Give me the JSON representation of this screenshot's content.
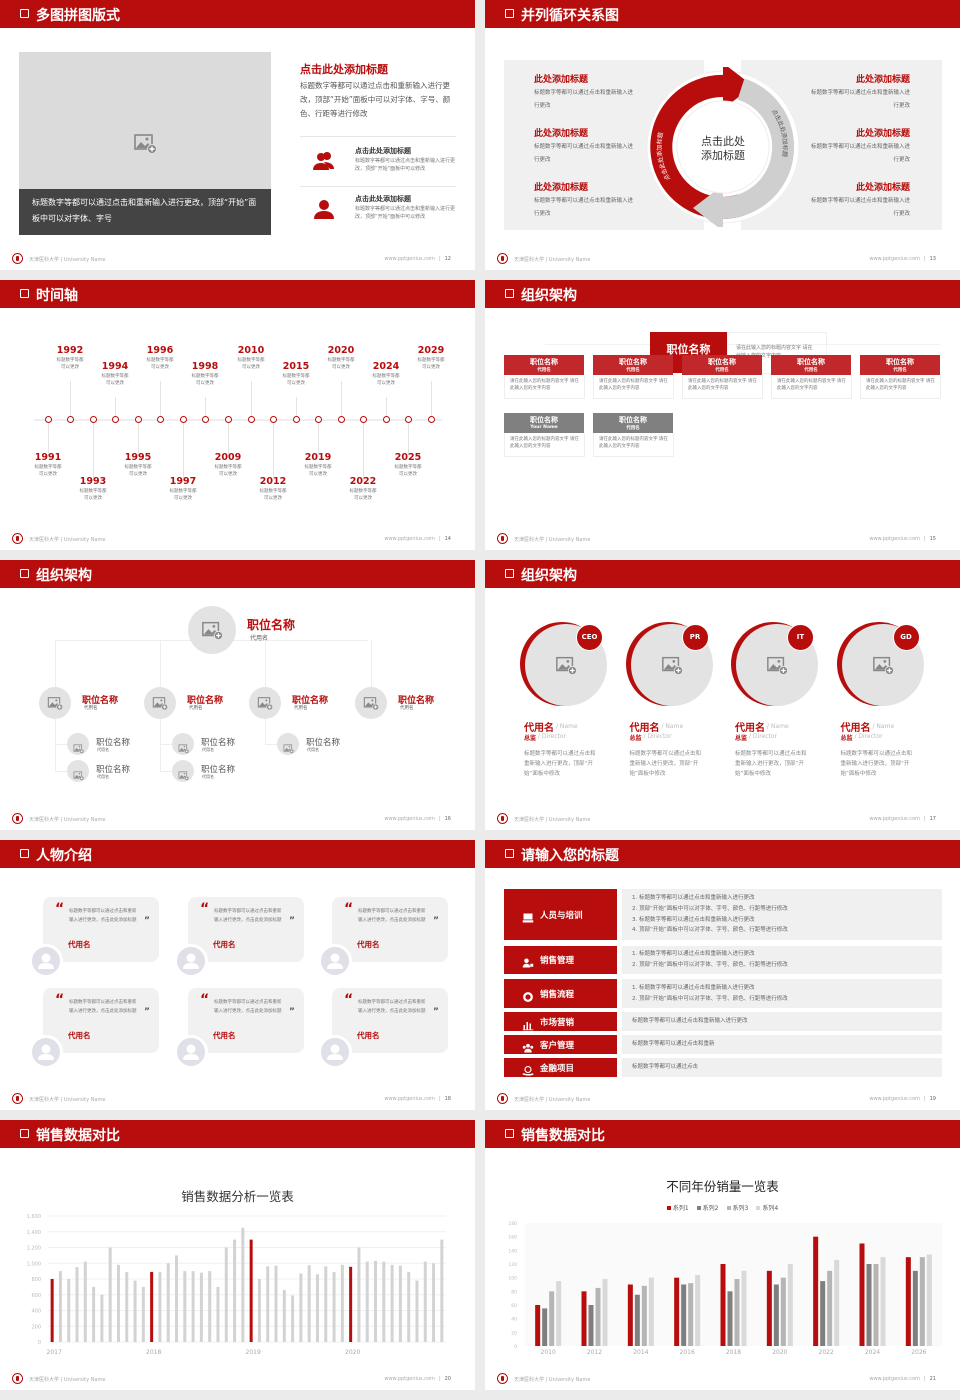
{
  "common": {
    "university": "天津医科大学 | University Name",
    "site": "www.pptgenius.com",
    "colors": {
      "accent": "#b70d0d",
      "dark": "#444444",
      "panel": "#f0f0f0",
      "series": [
        "#b70d0d",
        "#7f7f7f",
        "#b5b5b5",
        "#d9d9d9"
      ]
    }
  },
  "slides": [
    {
      "page": "12",
      "title": "多图拼图版式",
      "image_icon": "image-add-icon",
      "image_caption": "标题数字等都可以通过点击和重新输入进行更改，顶部“开始”面板中可以对字体、字号",
      "heading": "点击此处添加标题",
      "body": "标题数字等都可以通过点击和重新输入进行更改，顶部“开始”面板中可以对字体、字号、颜色、行距等进行修改",
      "items": [
        {
          "icon": "users-icon",
          "title": "点击此处添加标题",
          "text": "标题数字等都可以通过点击和重新输入进行更改，顶部“开始”面板中可以修改"
        },
        {
          "icon": "user-icon",
          "title": "点击此处添加标题",
          "text": "标题数字等都可以通过点击和重新输入进行更改，顶部“开始”面板中可以修改"
        }
      ]
    },
    {
      "page": "13",
      "title": "并列循环关系图",
      "center": "点击此处添加标题",
      "arc_red": "点击此处添加标题",
      "arc_gray": "点击此处添加标题",
      "left": [
        {
          "title": "此处添加标题",
          "text": "标题数字等都可以通过点击和重新输入进行更改"
        },
        {
          "title": "此处添加标题",
          "text": "标题数字等都可以通过点击和重新输入进行更改"
        },
        {
          "title": "此处添加标题",
          "text": "标题数字等都可以通过点击和重新输入进行更改"
        }
      ],
      "right": [
        {
          "title": "此处添加标题",
          "text": "标题数字等都可以通过点击和重新输入进行更改"
        },
        {
          "title": "此处添加标题",
          "text": "标题数字等都可以通过点击和重新输入进行更改"
        },
        {
          "title": "此处添加标题",
          "text": "标题数字等都可以通过点击和重新输入进行更改"
        }
      ]
    },
    {
      "page": "14",
      "title": "时间轴",
      "events": [
        {
          "year": "1991",
          "text": "标题数字等都可以更改"
        },
        {
          "year": "1992",
          "text": "标题数字等都可以更改"
        },
        {
          "year": "1993",
          "text": "标题数字等都可以更改"
        },
        {
          "year": "1994",
          "text": "标题数字等都可以更改"
        },
        {
          "year": "1995",
          "text": "标题数字等都可以更改"
        },
        {
          "year": "1996",
          "text": "标题数字等都可以更改"
        },
        {
          "year": "1997",
          "text": "标题数字等都可以更改"
        },
        {
          "year": "1998",
          "text": "标题数字等都可以更改"
        },
        {
          "year": "2009",
          "text": "标题数字等都可以更改"
        },
        {
          "year": "2010",
          "text": "标题数字等都可以更改"
        },
        {
          "year": "2012",
          "text": "标题数字等都可以更改"
        },
        {
          "year": "2015",
          "text": "标题数字等都可以更改"
        },
        {
          "year": "2019",
          "text": "标题数字等都可以更改"
        },
        {
          "year": "2020",
          "text": "标题数字等都可以更改"
        },
        {
          "year": "2022",
          "text": "标题数字等都可以更改"
        },
        {
          "year": "2024",
          "text": "标题数字等都可以更改"
        },
        {
          "year": "2025",
          "text": "标题数字等都可以更改"
        },
        {
          "year": "2029",
          "text": "标题数字等都可以更改"
        }
      ]
    },
    {
      "page": "15",
      "title": "组织架构",
      "top": {
        "title": "职位名称",
        "sub": "代用名",
        "desc": "请在此输入您的标题内容文字 请在此输入您的文字内容"
      },
      "boxes": [
        {
          "title": "职位名称",
          "sub": "代用名",
          "desc": "请在此输入您的标题内容文字 请在此输入您的文字内容",
          "style": "red"
        },
        {
          "title": "职位名称",
          "sub": "代用名",
          "desc": "请在此输入您的标题内容文字 请在此输入您的文字内容",
          "style": "red"
        },
        {
          "title": "职位名称",
          "sub": "代用名",
          "desc": "请在此输入您的标题内容文字 请在此输入您的文字内容",
          "style": "red"
        },
        {
          "title": "职位名称",
          "sub": "代用名",
          "desc": "请在此输入您的标题内容文字 请在此输入您的文字内容",
          "style": "red"
        },
        {
          "title": "职位名称",
          "sub": "代用名",
          "desc": "请在此输入您的标题内容文字 请在此输入您的文字内容",
          "style": "red"
        },
        {
          "title": "职位名称",
          "sub": "Your Name",
          "desc": "请在此输入您的标题内容文字 请在此输入您的文字内容",
          "style": "gray"
        },
        {
          "title": "职位名称",
          "sub": "代用名",
          "desc": "请在此输入您的标题内容文字 请在此输入您的文字内容",
          "style": "gray"
        }
      ]
    },
    {
      "page": "16",
      "title": "组织架构",
      "top": {
        "title": "职位名称",
        "sub": "代用名"
      },
      "managers": [
        {
          "title": "职位名称",
          "sub": "代用名",
          "subs": [
            {
              "title": "职位名称",
              "sub": "代用名"
            },
            {
              "title": "职位名称",
              "sub": "代用名"
            }
          ]
        },
        {
          "title": "职位名称",
          "sub": "代用名",
          "subs": [
            {
              "title": "职位名称",
              "sub": "代用名"
            },
            {
              "title": "职位名称",
              "sub": "代用名"
            }
          ]
        },
        {
          "title": "职位名称",
          "sub": "代用名",
          "subs": [
            {
              "title": "职位名称",
              "sub": "代用名"
            }
          ]
        },
        {
          "title": "职位名称",
          "sub": "代用名",
          "subs": []
        }
      ]
    },
    {
      "page": "17",
      "title": "组织架构",
      "people": [
        {
          "badge": "CEO",
          "name": "代用名",
          "name_en": "/ Name",
          "role": "总监",
          "role_en": "/ Director",
          "desc": "标题数字等都可以通过点击和重新输入进行更改，顶部“开始”面板中修改"
        },
        {
          "badge": "PR",
          "name": "代用名",
          "name_en": "/ Name",
          "role": "总监",
          "role_en": "/ Director",
          "desc": "标题数字等都可以通过点击和重新输入进行更改，顶部“开始”面板中修改"
        },
        {
          "badge": "IT",
          "name": "代用名",
          "name_en": "/ Name",
          "role": "总监",
          "role_en": "/ Director",
          "desc": "标题数字等都可以通过点击和重新输入进行更改，顶部“开始”面板中修改"
        },
        {
          "badge": "GD",
          "name": "代用名",
          "name_en": "/ Name",
          "role": "总监",
          "role_en": "/ Director",
          "desc": "标题数字等都可以通过点击和重新输入进行更改，顶部“开始”面板中修改"
        }
      ]
    },
    {
      "page": "18",
      "title": "人物介绍",
      "cards": [
        {
          "quote": "标题数字等都可以通过点击和重新输入进行更改，点击此处添加标题",
          "name": "代用名"
        },
        {
          "quote": "标题数字等都可以通过点击和重新输入进行更改，点击此处添加标题",
          "name": "代用名"
        },
        {
          "quote": "标题数字等都可以通过点击和重新输入进行更改，点击此处添加标题",
          "name": "代用名"
        },
        {
          "quote": "标题数字等都可以通过点击和重新输入进行更改，点击此处添加标题",
          "name": "代用名"
        },
        {
          "quote": "标题数字等都可以通过点击和重新输入进行更改，点击此处添加标题",
          "name": "代用名"
        },
        {
          "quote": "标题数字等都可以通过点击和重新输入进行更改，点击此处添加标题",
          "name": "代用名"
        }
      ]
    },
    {
      "page": "19",
      "title": "请输入您的标题",
      "rows": [
        {
          "label": "人员与培训",
          "icon": "training-icon",
          "lines": [
            "1.  标题数字等都可以通过点击和重新输入进行更改",
            "2.  顶部“开始”面板中可以对字体、字号、颜色、行距等进行修改",
            "3.  标题数字等都可以通过点击和重新输入进行更改",
            "4.  顶部“开始”面板中可以对字体、字号、颜色、行距等进行修改"
          ]
        },
        {
          "label": "销售管理",
          "icon": "sales-manager-icon",
          "lines": [
            "1.  标题数字等都可以通过点击和重新输入进行更改",
            "2.  顶部“开始”面板中可以对字体、字号、颜色、行距等进行修改"
          ]
        },
        {
          "label": "销售流程",
          "icon": "cycle-icon",
          "lines": [
            "1.  标题数字等都可以通过点击和重新输入进行更改",
            "2.  顶部“开始”面板中可以对字体、字号、颜色、行距等进行修改"
          ]
        },
        {
          "label": "市场营销",
          "icon": "bar-chart-icon",
          "lines": [
            "标题数字等都可以通过点击和重新输入进行更改"
          ]
        },
        {
          "label": "客户管理",
          "icon": "customers-icon",
          "lines": [
            "标题数字等都可以通过点击和重新"
          ]
        },
        {
          "label": "金融项目",
          "icon": "finance-icon",
          "lines": [
            "标题数字等都可以通过点击"
          ]
        }
      ]
    },
    {
      "page": "20",
      "title": "销售数据对比"
    },
    {
      "page": "21",
      "title": "销售数据对比"
    }
  ],
  "chart_data": [
    {
      "type": "bar",
      "title": "销售数据分析一览表",
      "xlabel": "",
      "ylabel": "",
      "ylim": [
        0,
        1600
      ],
      "yticks": [
        "0",
        "200",
        "400",
        "600",
        "800",
        "1,000",
        "1,200",
        "1,400",
        "1,600"
      ],
      "xticks": [
        "2017",
        "2018",
        "2019",
        "2020"
      ],
      "grid": true,
      "values": [
        800,
        900,
        800,
        950,
        1020,
        700,
        600,
        1200,
        980,
        890,
        780,
        700,
        890,
        890,
        1000,
        1100,
        900,
        900,
        880,
        900,
        700,
        1200,
        1300,
        1450,
        1300,
        800,
        960,
        970,
        660,
        590,
        870,
        975,
        860,
        960,
        890,
        980,
        955,
        1200,
        1020,
        1030,
        1020,
        980,
        970,
        890,
        780,
        1020,
        1000,
        1300
      ],
      "highlight_indices": [
        0,
        12,
        24,
        36
      ],
      "colors": {
        "highlight": "#b70d0d",
        "default": "#d3d3d3"
      }
    },
    {
      "type": "bar",
      "title": "不同年份销量一览表",
      "legend": "top",
      "ylim": [
        0,
        180
      ],
      "yticks": [
        "0",
        "20",
        "40",
        "60",
        "80",
        "100",
        "120",
        "140",
        "160",
        "180"
      ],
      "categories": [
        "2010",
        "2012",
        "2014",
        "2016",
        "2018",
        "2020",
        "2022",
        "2024",
        "2026"
      ],
      "series": [
        {
          "name": "系列1",
          "values": [
            60,
            80,
            90,
            100,
            120,
            110,
            160,
            150,
            130
          ]
        },
        {
          "name": "系列2",
          "values": [
            55,
            60,
            75,
            90,
            80,
            90,
            95,
            120,
            110
          ]
        },
        {
          "name": "系列3",
          "values": [
            80,
            85,
            88,
            92,
            98,
            100,
            110,
            120,
            130
          ]
        },
        {
          "name": "系列4",
          "values": [
            95,
            98,
            100,
            104,
            110,
            120,
            126,
            130,
            134
          ]
        }
      ]
    }
  ]
}
